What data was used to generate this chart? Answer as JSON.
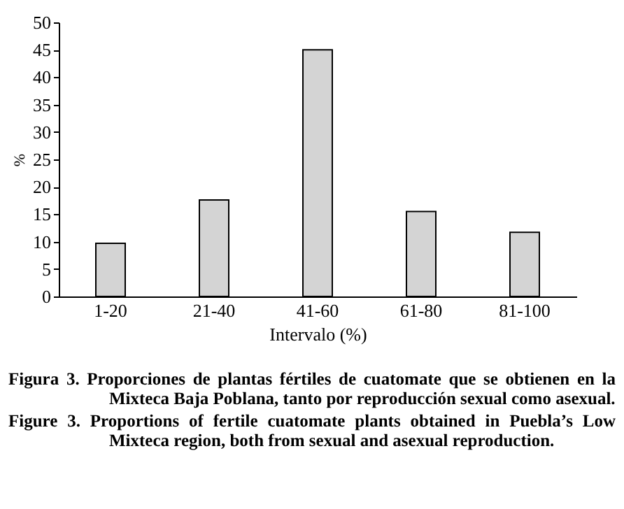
{
  "chart_data": {
    "type": "bar",
    "xlabel": "Intervalo (%)",
    "ylabel": "%",
    "categories": [
      "1-20",
      "21-40",
      "41-60",
      "61-80",
      "81-100"
    ],
    "values": [
      9.7,
      17.6,
      45,
      15.5,
      11.7
    ],
    "color": "#d4d4d4",
    "ylim": [
      0,
      50
    ],
    "yticks": [
      0,
      5,
      10,
      15,
      20,
      25,
      30,
      35,
      40,
      45,
      50
    ],
    "grid": false,
    "annotations": [
      "Figura 3. Proporciones de plantas fértiles de cuatomate que se obtienen en la Mixteca Baja Poblana, tanto por reproducción sexual como asexual.",
      "Figure 3. Proportions of fertile cuatomate plants obtained in Puebla’s Low Mixteca region, both from sexual and asexual reproduction."
    ]
  }
}
